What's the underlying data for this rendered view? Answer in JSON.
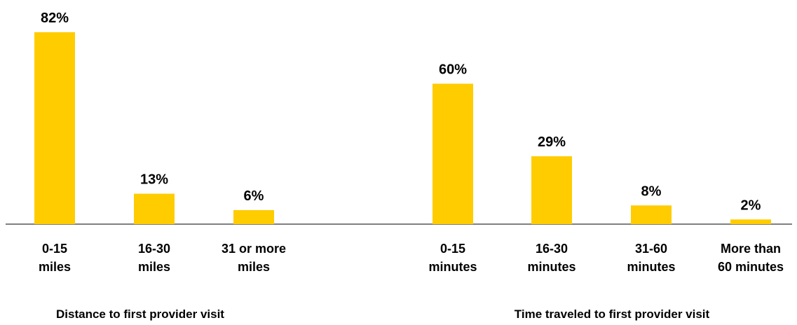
{
  "chart_data": [
    {
      "type": "bar",
      "categories": [
        [
          "0-15",
          "miles"
        ],
        [
          "16-30",
          "miles"
        ],
        [
          "31 or more",
          "miles"
        ]
      ],
      "values": [
        82,
        13,
        6
      ],
      "value_labels": [
        "82%",
        "13%",
        "6%"
      ],
      "xlabel": "Distance to first provider visit",
      "ylabel": "",
      "ylim": [
        0,
        82
      ],
      "color": "#FFCC00",
      "grid": false
    },
    {
      "type": "bar",
      "categories": [
        [
          "0-15",
          "minutes"
        ],
        [
          "16-30",
          "minutes"
        ],
        [
          "31-60",
          "minutes"
        ],
        [
          "More than",
          "60 minutes"
        ]
      ],
      "values": [
        60,
        29,
        8,
        2
      ],
      "value_labels": [
        "60%",
        "29%",
        "8%",
        "2%"
      ],
      "xlabel": "Time traveled to first provider visit",
      "ylabel": "",
      "ylim": [
        0,
        82
      ],
      "color": "#FFCC00",
      "grid": false
    }
  ]
}
